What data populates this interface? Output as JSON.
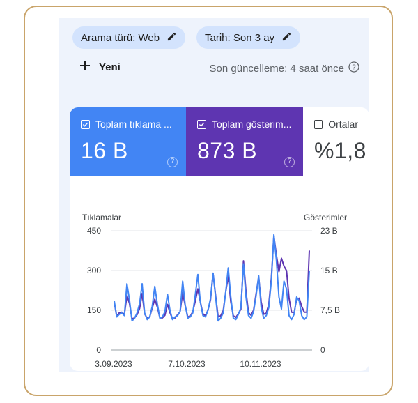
{
  "filters": {
    "search_type": "Arama türü: Web",
    "date": "Tarih: Son 3 ay"
  },
  "new_button": "Yeni",
  "last_update": "Son güncelleme: 4 saat önce",
  "metrics": [
    {
      "label": "Toplam tıklama ...",
      "value": "16 B",
      "checked": true,
      "color": "#4285f4"
    },
    {
      "label": "Toplam gösterim...",
      "value": "873 B",
      "checked": true,
      "color": "#5e35b1"
    },
    {
      "label": "Ortalar",
      "value": "%1,8",
      "checked": false,
      "color": "#ffffff"
    }
  ],
  "chart_data": {
    "type": "line",
    "left_axis_label": "Tıklamalar",
    "right_axis_label": "Gösterimler",
    "left_ticks": [
      "450",
      "300",
      "150",
      "0"
    ],
    "right_ticks": [
      "23 B",
      "15 B",
      "7,5 B",
      "0"
    ],
    "left_ylim": [
      0,
      450
    ],
    "right_ylim": [
      0,
      23
    ],
    "x_labels": [
      "3.09.2023",
      "7.10.2023",
      "10.11.2023"
    ],
    "series": [
      {
        "name": "Tıklamalar",
        "axis": "left",
        "color": "#4285f4",
        "values": [
          185,
          125,
          135,
          140,
          130,
          250,
          190,
          110,
          120,
          140,
          175,
          250,
          140,
          115,
          125,
          165,
          240,
          175,
          120,
          125,
          145,
          210,
          150,
          115,
          125,
          130,
          145,
          260,
          170,
          120,
          125,
          140,
          210,
          285,
          180,
          130,
          125,
          150,
          195,
          290,
          200,
          110,
          120,
          140,
          220,
          310,
          200,
          120,
          115,
          135,
          160,
          325,
          200,
          130,
          120,
          145,
          205,
          280,
          160,
          120,
          130,
          160,
          260,
          435,
          340,
          200,
          155,
          260,
          230,
          130,
          115,
          135,
          200,
          185,
          130,
          115,
          125,
          300
        ]
      },
      {
        "name": "Gösterimler",
        "axis": "right",
        "color": "#5e35b1",
        "values": [
          9.2,
          6.5,
          7.2,
          7.3,
          6.8,
          10.5,
          9.0,
          6.0,
          6.2,
          6.8,
          8.0,
          10.9,
          7.0,
          6.1,
          6.4,
          8.1,
          9.8,
          8.3,
          6.2,
          6.2,
          6.7,
          8.8,
          7.2,
          6.0,
          6.2,
          6.8,
          7.4,
          11.1,
          8.6,
          6.4,
          6.5,
          7.4,
          9.5,
          11.8,
          9.3,
          7.0,
          6.6,
          7.7,
          9.7,
          14.8,
          10.5,
          6.4,
          6.6,
          7.6,
          11.2,
          14.3,
          9.3,
          6.6,
          6.3,
          7.0,
          7.9,
          17.2,
          11.3,
          7.2,
          6.7,
          7.7,
          10.9,
          14.1,
          9.3,
          6.9,
          7.1,
          8.8,
          13.9,
          22.0,
          18.4,
          15.1,
          17.7,
          16.2,
          15.3,
          10.0,
          7.3,
          7.2,
          9.8,
          10.0,
          8.4,
          7.3,
          7.3,
          19.2
        ]
      }
    ]
  }
}
